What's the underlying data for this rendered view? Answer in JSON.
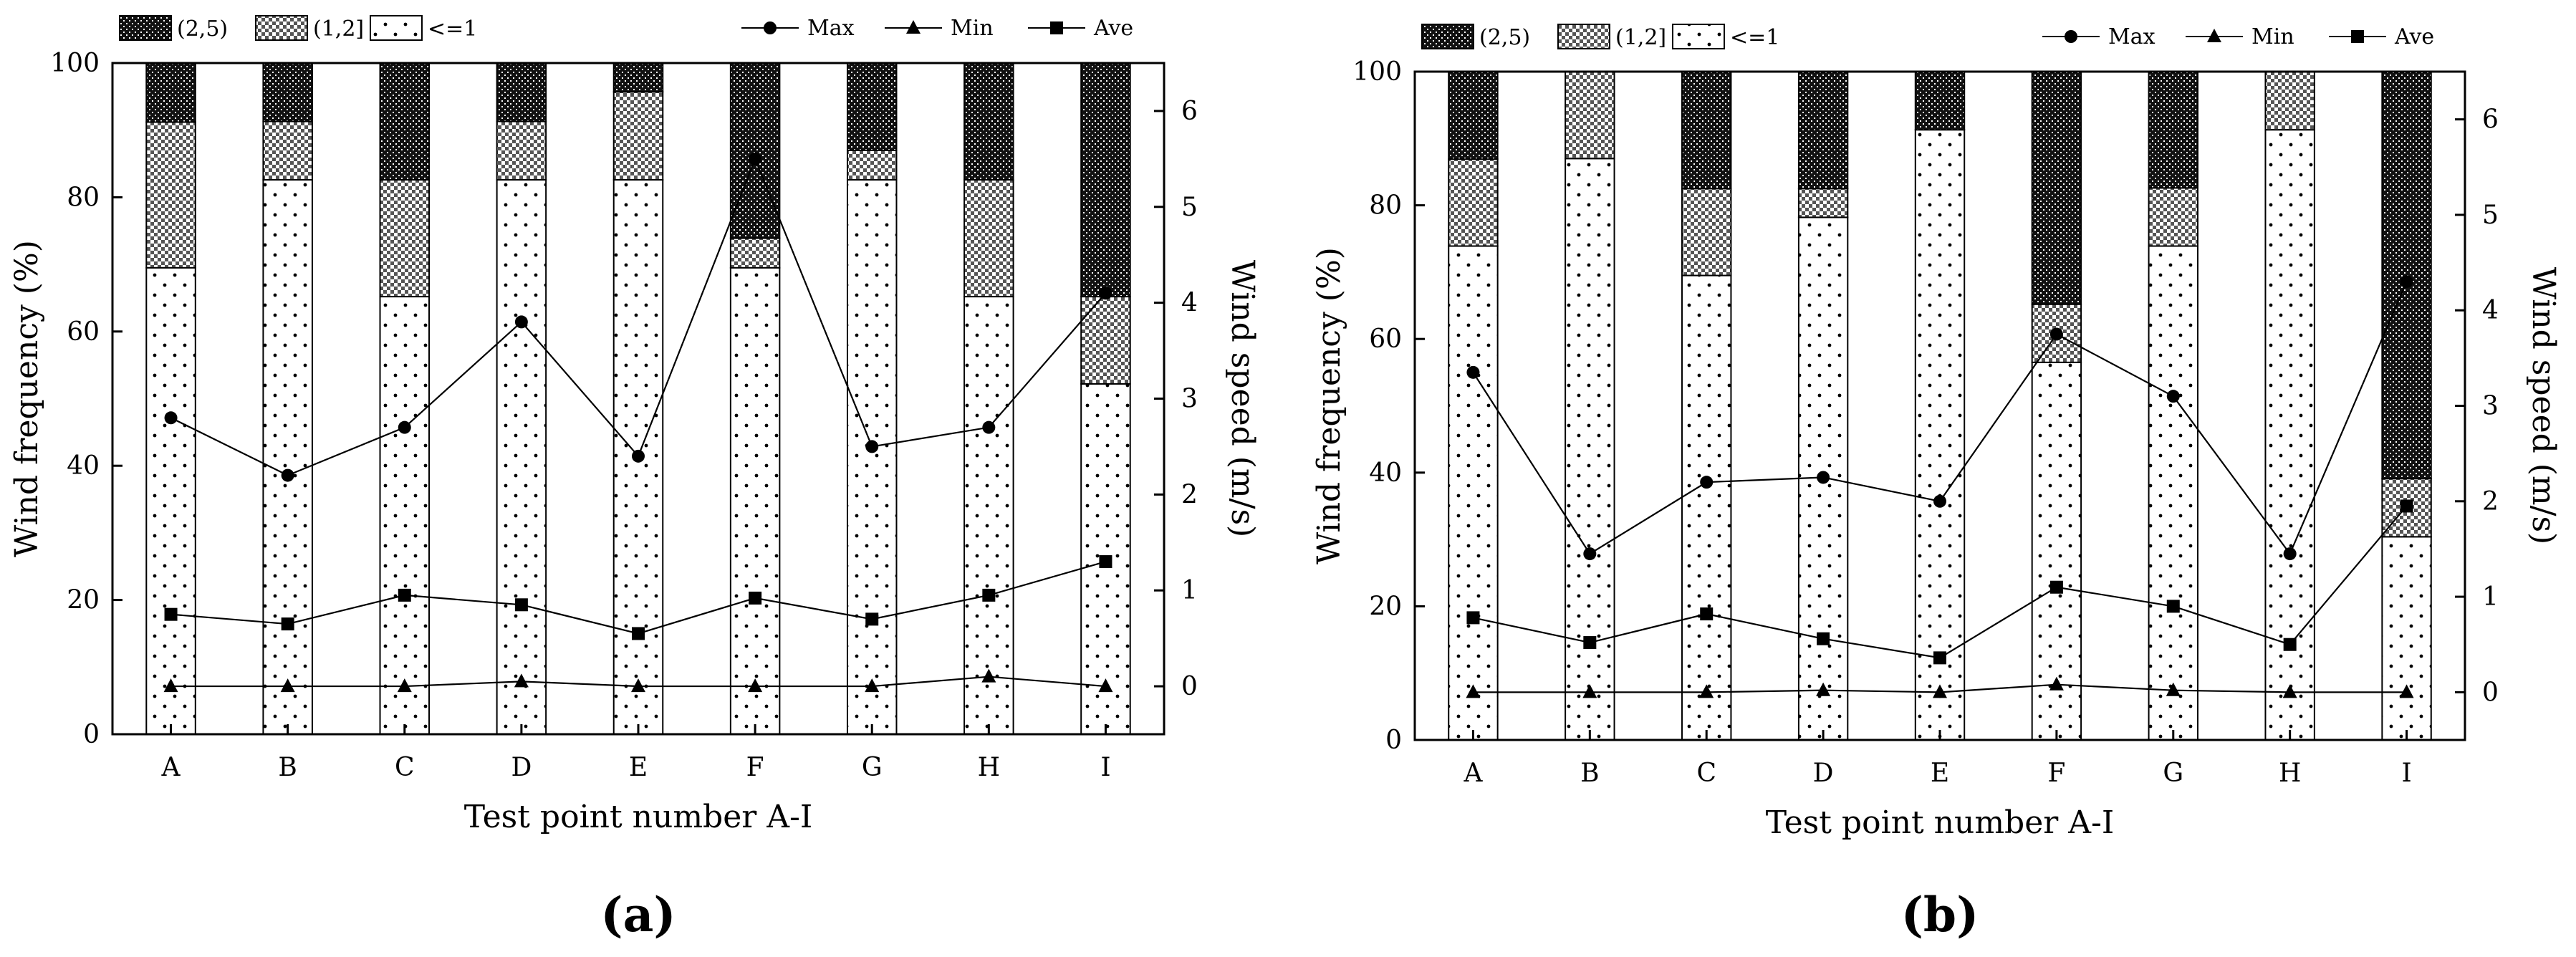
{
  "chart_data": [
    {
      "type": "bar",
      "panel_label": "(a)",
      "stacked": true,
      "categories": [
        "A",
        "B",
        "C",
        "D",
        "E",
        "F",
        "G",
        "H",
        "I"
      ],
      "xlabel": "Test point number A-I",
      "ylabel": "Wind frequency (%)",
      "y2label": "Wind speed (m/s)",
      "ylim": [
        0,
        100
      ],
      "y2lim": [
        -0.5,
        6.5
      ],
      "yticks": [
        0,
        20,
        40,
        60,
        80,
        100
      ],
      "y2ticks": [
        0,
        1,
        2,
        3,
        4,
        5,
        6
      ],
      "bar_legend": [
        "(2,5)",
        "(1,2]",
        "<=1"
      ],
      "line_legend": [
        "Max",
        "Min",
        "Ave"
      ],
      "series": [
        {
          "name": "<=1",
          "kind": "bar",
          "values": [
            69.5,
            82.6,
            65.2,
            82.6,
            82.6,
            69.5,
            82.6,
            65.2,
            52.2
          ]
        },
        {
          "name": "(1,2]",
          "kind": "bar",
          "values": [
            21.7,
            8.7,
            17.4,
            8.7,
            13.1,
            4.4,
            4.4,
            17.4,
            13.0
          ]
        },
        {
          "name": "(2,5)",
          "kind": "bar",
          "values": [
            8.8,
            8.7,
            17.4,
            8.7,
            4.3,
            26.1,
            13.0,
            17.4,
            34.8
          ]
        },
        {
          "name": "Max",
          "kind": "line",
          "axis": "y2",
          "values": [
            2.8,
            2.2,
            2.7,
            3.8,
            2.4,
            5.5,
            2.5,
            2.7,
            4.1
          ]
        },
        {
          "name": "Min",
          "kind": "line",
          "axis": "y2",
          "values": [
            0.0,
            0.0,
            0.0,
            0.05,
            0.0,
            0.0,
            0.0,
            0.1,
            0.0
          ]
        },
        {
          "name": "Ave",
          "kind": "line",
          "axis": "y2",
          "values": [
            0.75,
            0.65,
            0.95,
            0.85,
            0.55,
            0.92,
            0.7,
            0.95,
            1.3
          ]
        }
      ]
    },
    {
      "type": "bar",
      "panel_label": "(b)",
      "stacked": true,
      "categories": [
        "A",
        "B",
        "C",
        "D",
        "E",
        "F",
        "G",
        "H",
        "I"
      ],
      "xlabel": "Test point number A-I",
      "ylabel": "Wind frequency (%)",
      "y2label": "Wind speed (m/s)",
      "ylim": [
        0,
        100
      ],
      "y2lim": [
        -0.5,
        6.5
      ],
      "yticks": [
        0,
        20,
        40,
        60,
        80,
        100
      ],
      "y2ticks": [
        0,
        1,
        2,
        3,
        4,
        5,
        6
      ],
      "bar_legend": [
        "(2,5)",
        "(1,2]",
        "<=1"
      ],
      "line_legend": [
        "Max",
        "Min",
        "Ave"
      ],
      "series": [
        {
          "name": "<=1",
          "kind": "bar",
          "values": [
            73.9,
            87.0,
            69.5,
            78.2,
            91.3,
            56.5,
            73.9,
            91.3,
            30.4
          ]
        },
        {
          "name": "(1,2]",
          "kind": "bar",
          "values": [
            13.0,
            13.0,
            13.0,
            4.3,
            0.0,
            8.7,
            8.7,
            8.7,
            8.7
          ]
        },
        {
          "name": "(2,5)",
          "kind": "bar",
          "values": [
            13.1,
            0.0,
            17.5,
            17.5,
            8.7,
            34.8,
            17.4,
            0.0,
            60.9
          ]
        },
        {
          "name": "Max",
          "kind": "line",
          "axis": "y2",
          "values": [
            3.35,
            1.45,
            2.2,
            2.25,
            2.0,
            3.75,
            3.1,
            1.45,
            4.3
          ]
        },
        {
          "name": "Min",
          "kind": "line",
          "axis": "y2",
          "values": [
            0.0,
            0.0,
            0.0,
            0.02,
            0.0,
            0.08,
            0.02,
            0.0,
            0.0
          ]
        },
        {
          "name": "Ave",
          "kind": "line",
          "axis": "y2",
          "values": [
            0.78,
            0.52,
            0.82,
            0.56,
            0.36,
            1.1,
            0.9,
            0.5,
            1.95
          ]
        }
      ]
    }
  ]
}
